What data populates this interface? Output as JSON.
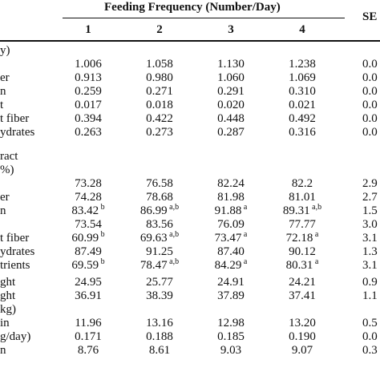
{
  "table": {
    "group_header": "Feeding Frequency (Number/Day)",
    "sem_header": "SE",
    "frequencies": [
      "1",
      "2",
      "3",
      "4"
    ],
    "section1_label": "y)",
    "section2_label_1": "ract",
    "section2_label_2": "%)",
    "section3_label": "kg)",
    "rows": [
      {
        "label": "",
        "values": [
          "1.006",
          "1.058",
          "1.130",
          "1.238"
        ],
        "sups": [
          "",
          "",
          "",
          ""
        ],
        "sem": "0.0"
      },
      {
        "label": "er",
        "values": [
          "0.913",
          "0.980",
          "1.060",
          "1.069"
        ],
        "sups": [
          "",
          "",
          "",
          ""
        ],
        "sem": "0.0"
      },
      {
        "label": "n",
        "values": [
          "0.259",
          "0.271",
          "0.291",
          "0.310"
        ],
        "sups": [
          "",
          "",
          "",
          ""
        ],
        "sem": "0.0"
      },
      {
        "label": "t",
        "values": [
          "0.017",
          "0.018",
          "0.020",
          "0.021"
        ],
        "sups": [
          "",
          "",
          "",
          ""
        ],
        "sem": "0.0"
      },
      {
        "label": "t fiber",
        "values": [
          "0.394",
          "0.422",
          "0.448",
          "0.492"
        ],
        "sups": [
          "",
          "",
          "",
          ""
        ],
        "sem": "0.0"
      },
      {
        "label": "ydrates",
        "values": [
          "0.263",
          "0.273",
          "0.287",
          "0.316"
        ],
        "sups": [
          "",
          "",
          "",
          ""
        ],
        "sem": "0.0"
      },
      {
        "label": "",
        "values": [
          "73.28",
          "76.58",
          "82.24",
          "82.2"
        ],
        "sups": [
          "",
          "",
          "",
          ""
        ],
        "sem": "2.9"
      },
      {
        "label": "er",
        "values": [
          "74.28",
          "78.68",
          "81.98",
          "81.01"
        ],
        "sups": [
          "",
          "",
          "",
          ""
        ],
        "sem": "2.7"
      },
      {
        "label": "n",
        "values": [
          "83.42",
          "86.99",
          "91.88",
          "89.31"
        ],
        "sups": [
          "b",
          "a,b",
          "a",
          "a,b"
        ],
        "sem": "1.5"
      },
      {
        "label": "",
        "values": [
          "73.54",
          "83.56",
          "76.09",
          "77.77"
        ],
        "sups": [
          "",
          "",
          "",
          ""
        ],
        "sem": "3.0"
      },
      {
        "label": "t fiber",
        "values": [
          "60.99",
          "69.63",
          "73.47",
          "72.18"
        ],
        "sups": [
          "b",
          "a,b",
          "a",
          "a"
        ],
        "sem": "3.1"
      },
      {
        "label": "ydrates",
        "values": [
          "87.49",
          "91.25",
          "87.40",
          "90.12"
        ],
        "sups": [
          "",
          "",
          "",
          ""
        ],
        "sem": "1.3"
      },
      {
        "label": "trients",
        "values": [
          "69.59",
          "78.47",
          "84.29",
          "80.31"
        ],
        "sups": [
          "b",
          "a,b",
          "a",
          "a"
        ],
        "sem": "3.1"
      },
      {
        "label": "ght",
        "values": [
          "24.95",
          "25.77",
          "24.91",
          "24.21"
        ],
        "sups": [
          "",
          "",
          "",
          ""
        ],
        "sem": "0.9"
      },
      {
        "label": "ght",
        "values": [
          "36.91",
          "38.39",
          "37.89",
          "37.41"
        ],
        "sups": [
          "",
          "",
          "",
          ""
        ],
        "sem": "1.1"
      },
      {
        "label": "in",
        "values": [
          "11.96",
          "13.16",
          "12.98",
          "13.20"
        ],
        "sups": [
          "",
          "",
          "",
          ""
        ],
        "sem": "0.5"
      },
      {
        "label": "g/day)",
        "values": [
          "0.171",
          "0.188",
          "0.185",
          "0.190"
        ],
        "sups": [
          "",
          "",
          "",
          ""
        ],
        "sem": "0.0"
      },
      {
        "label": "n",
        "values": [
          "8.76",
          "8.61",
          "9.03",
          "9.07"
        ],
        "sups": [
          "",
          "",
          "",
          ""
        ],
        "sem": "0.3"
      }
    ]
  }
}
